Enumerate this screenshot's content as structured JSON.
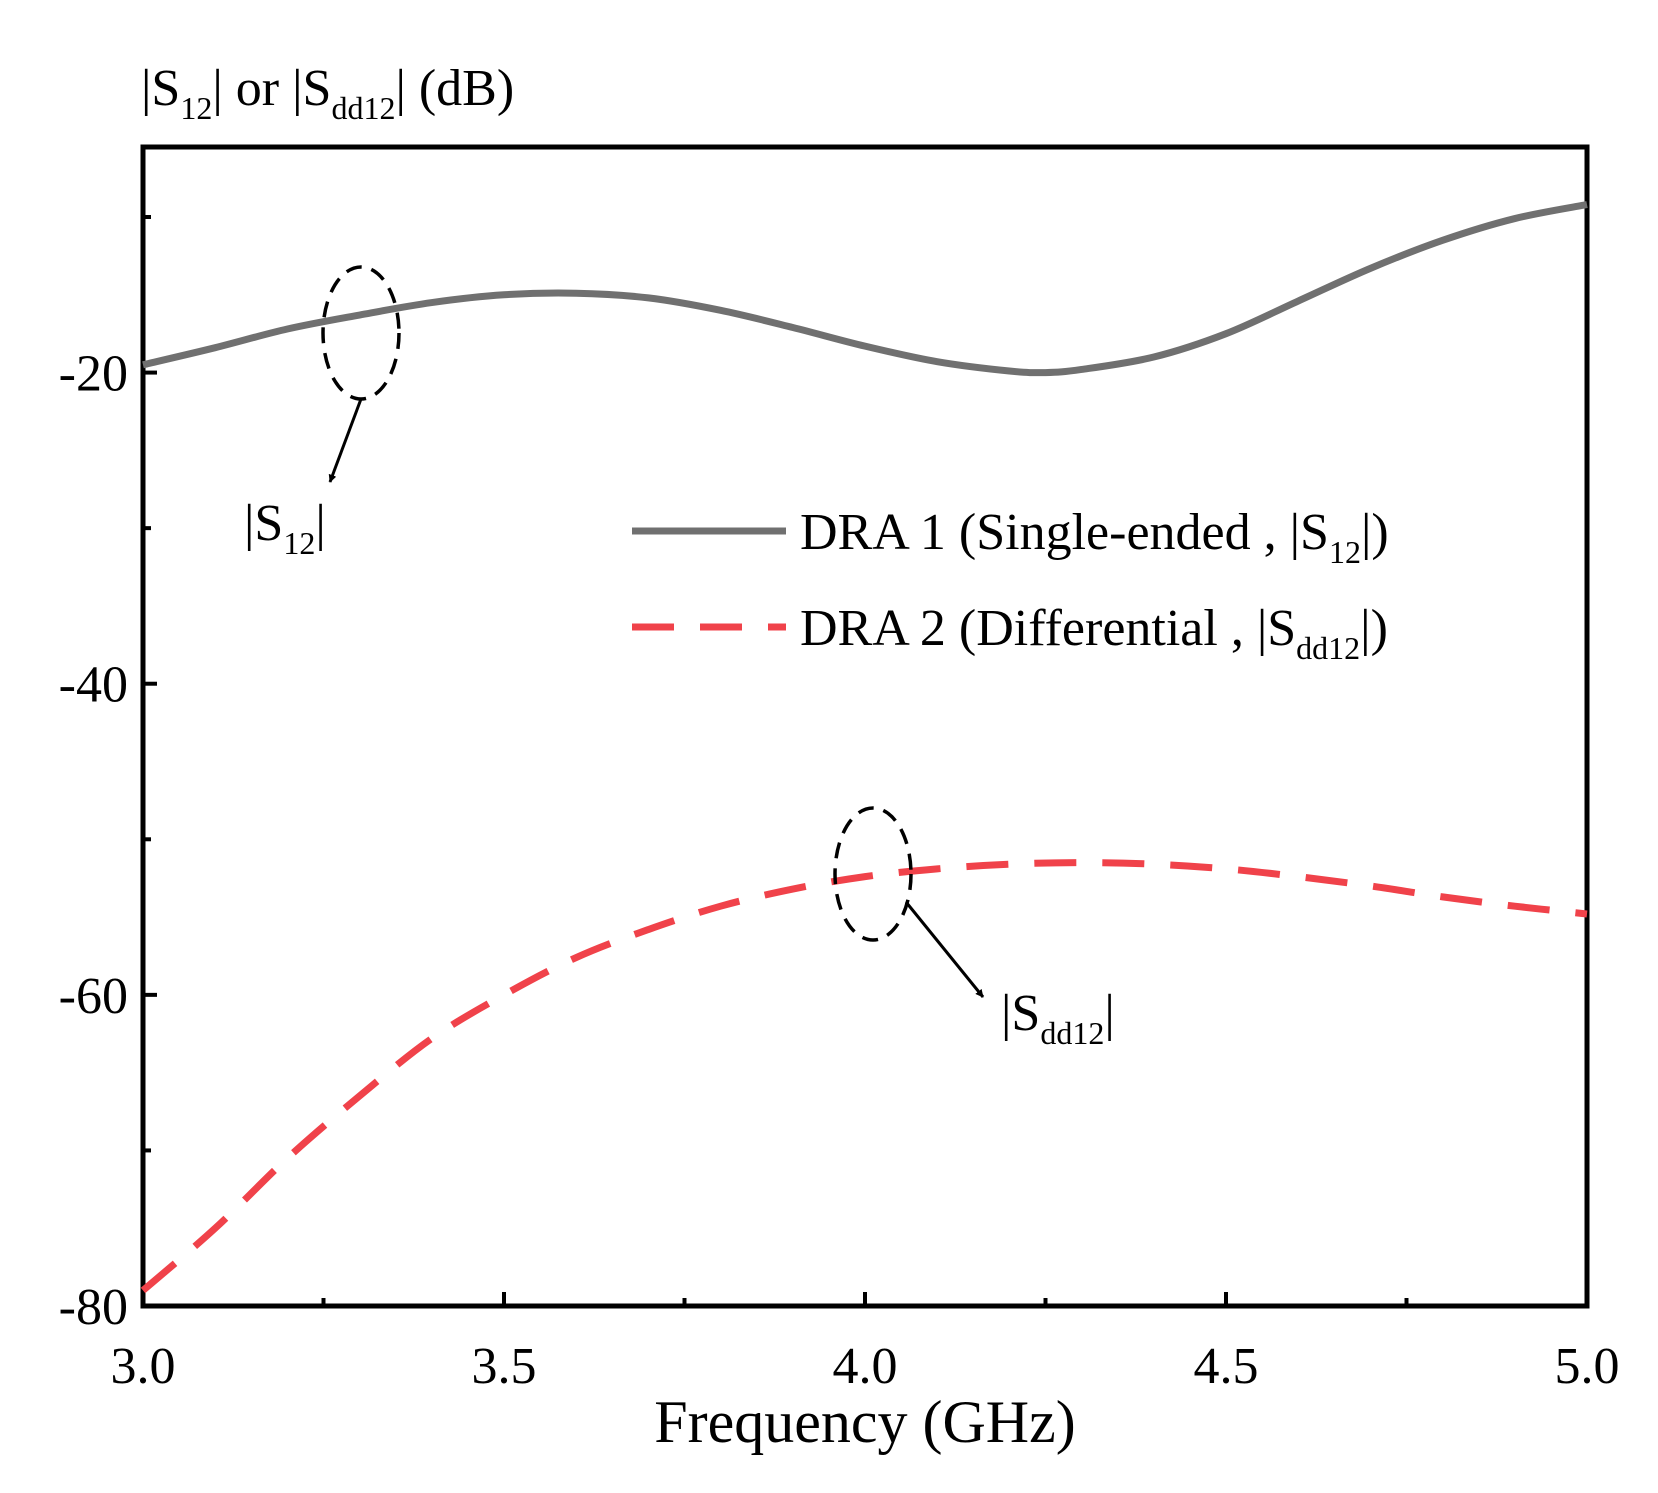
{
  "chart_data": {
    "type": "line",
    "ylabel": {
      "bar1": "|",
      "s1_main": "S",
      "s1_sub": "12",
      "bar2": "|",
      "mid": " or ",
      "bar3": "|",
      "s2_main": "S",
      "s2_sub": "dd12",
      "bar4": "|",
      "unit": " (dB)"
    },
    "xlabel": "Frequency (GHz)",
    "xlim": [
      3.0,
      5.0
    ],
    "ylim": [
      -80,
      -5.5
    ],
    "x_ticks": [
      3.0,
      3.5,
      4.0,
      4.5,
      5.0
    ],
    "x_tick_labels": [
      "3.0",
      "3.5",
      "4.0",
      "4.5",
      "5.0"
    ],
    "y_ticks": [
      -20,
      -40,
      -60,
      -80
    ],
    "y_tick_labels": [
      "-20",
      "-40",
      "-60",
      "-80"
    ],
    "grid": false,
    "legend_position": "center-right",
    "series": [
      {
        "id": "dra1",
        "legend": {
          "prefix": "DRA 1 (Single-ended , |",
          "main": "S",
          "sub": "12",
          "suffix": "|)"
        },
        "color": "#707070",
        "style": "solid",
        "x": [
          3.0,
          3.1,
          3.2,
          3.3,
          3.4,
          3.5,
          3.6,
          3.7,
          3.8,
          3.9,
          4.0,
          4.1,
          4.2,
          4.25,
          4.3,
          4.4,
          4.5,
          4.6,
          4.7,
          4.8,
          4.9,
          5.0
        ],
        "y": [
          -19.5,
          -18.4,
          -17.2,
          -16.3,
          -15.5,
          -15.0,
          -14.9,
          -15.2,
          -16.0,
          -17.1,
          -18.3,
          -19.3,
          -19.9,
          -20.0,
          -19.8,
          -19.0,
          -17.5,
          -15.4,
          -13.3,
          -11.5,
          -10.1,
          -9.2
        ]
      },
      {
        "id": "dra2",
        "legend": {
          "prefix": "DRA 2 (Differential , |",
          "main": "S",
          "sub": "dd12",
          "suffix": "|)"
        },
        "color": "#f0424a",
        "style": "dashed",
        "x": [
          3.0,
          3.1,
          3.2,
          3.3,
          3.4,
          3.5,
          3.6,
          3.7,
          3.8,
          3.9,
          4.0,
          4.1,
          4.2,
          4.3,
          4.4,
          4.5,
          4.6,
          4.7,
          4.8,
          4.9,
          5.0
        ],
        "y": [
          -79.0,
          -75.0,
          -70.5,
          -66.5,
          -62.8,
          -60.0,
          -57.6,
          -55.8,
          -54.3,
          -53.2,
          -52.4,
          -51.9,
          -51.6,
          -51.5,
          -51.6,
          -51.9,
          -52.4,
          -53.0,
          -53.7,
          -54.3,
          -54.8
        ]
      }
    ],
    "annotations": [
      {
        "target": "dra1",
        "text": {
          "bar1": "|",
          "main": "S",
          "sub": "12",
          "bar2": "|"
        }
      },
      {
        "target": "dra2",
        "text": {
          "bar1": "|",
          "main": "S",
          "sub": "dd12",
          "bar2": "|"
        }
      }
    ]
  }
}
